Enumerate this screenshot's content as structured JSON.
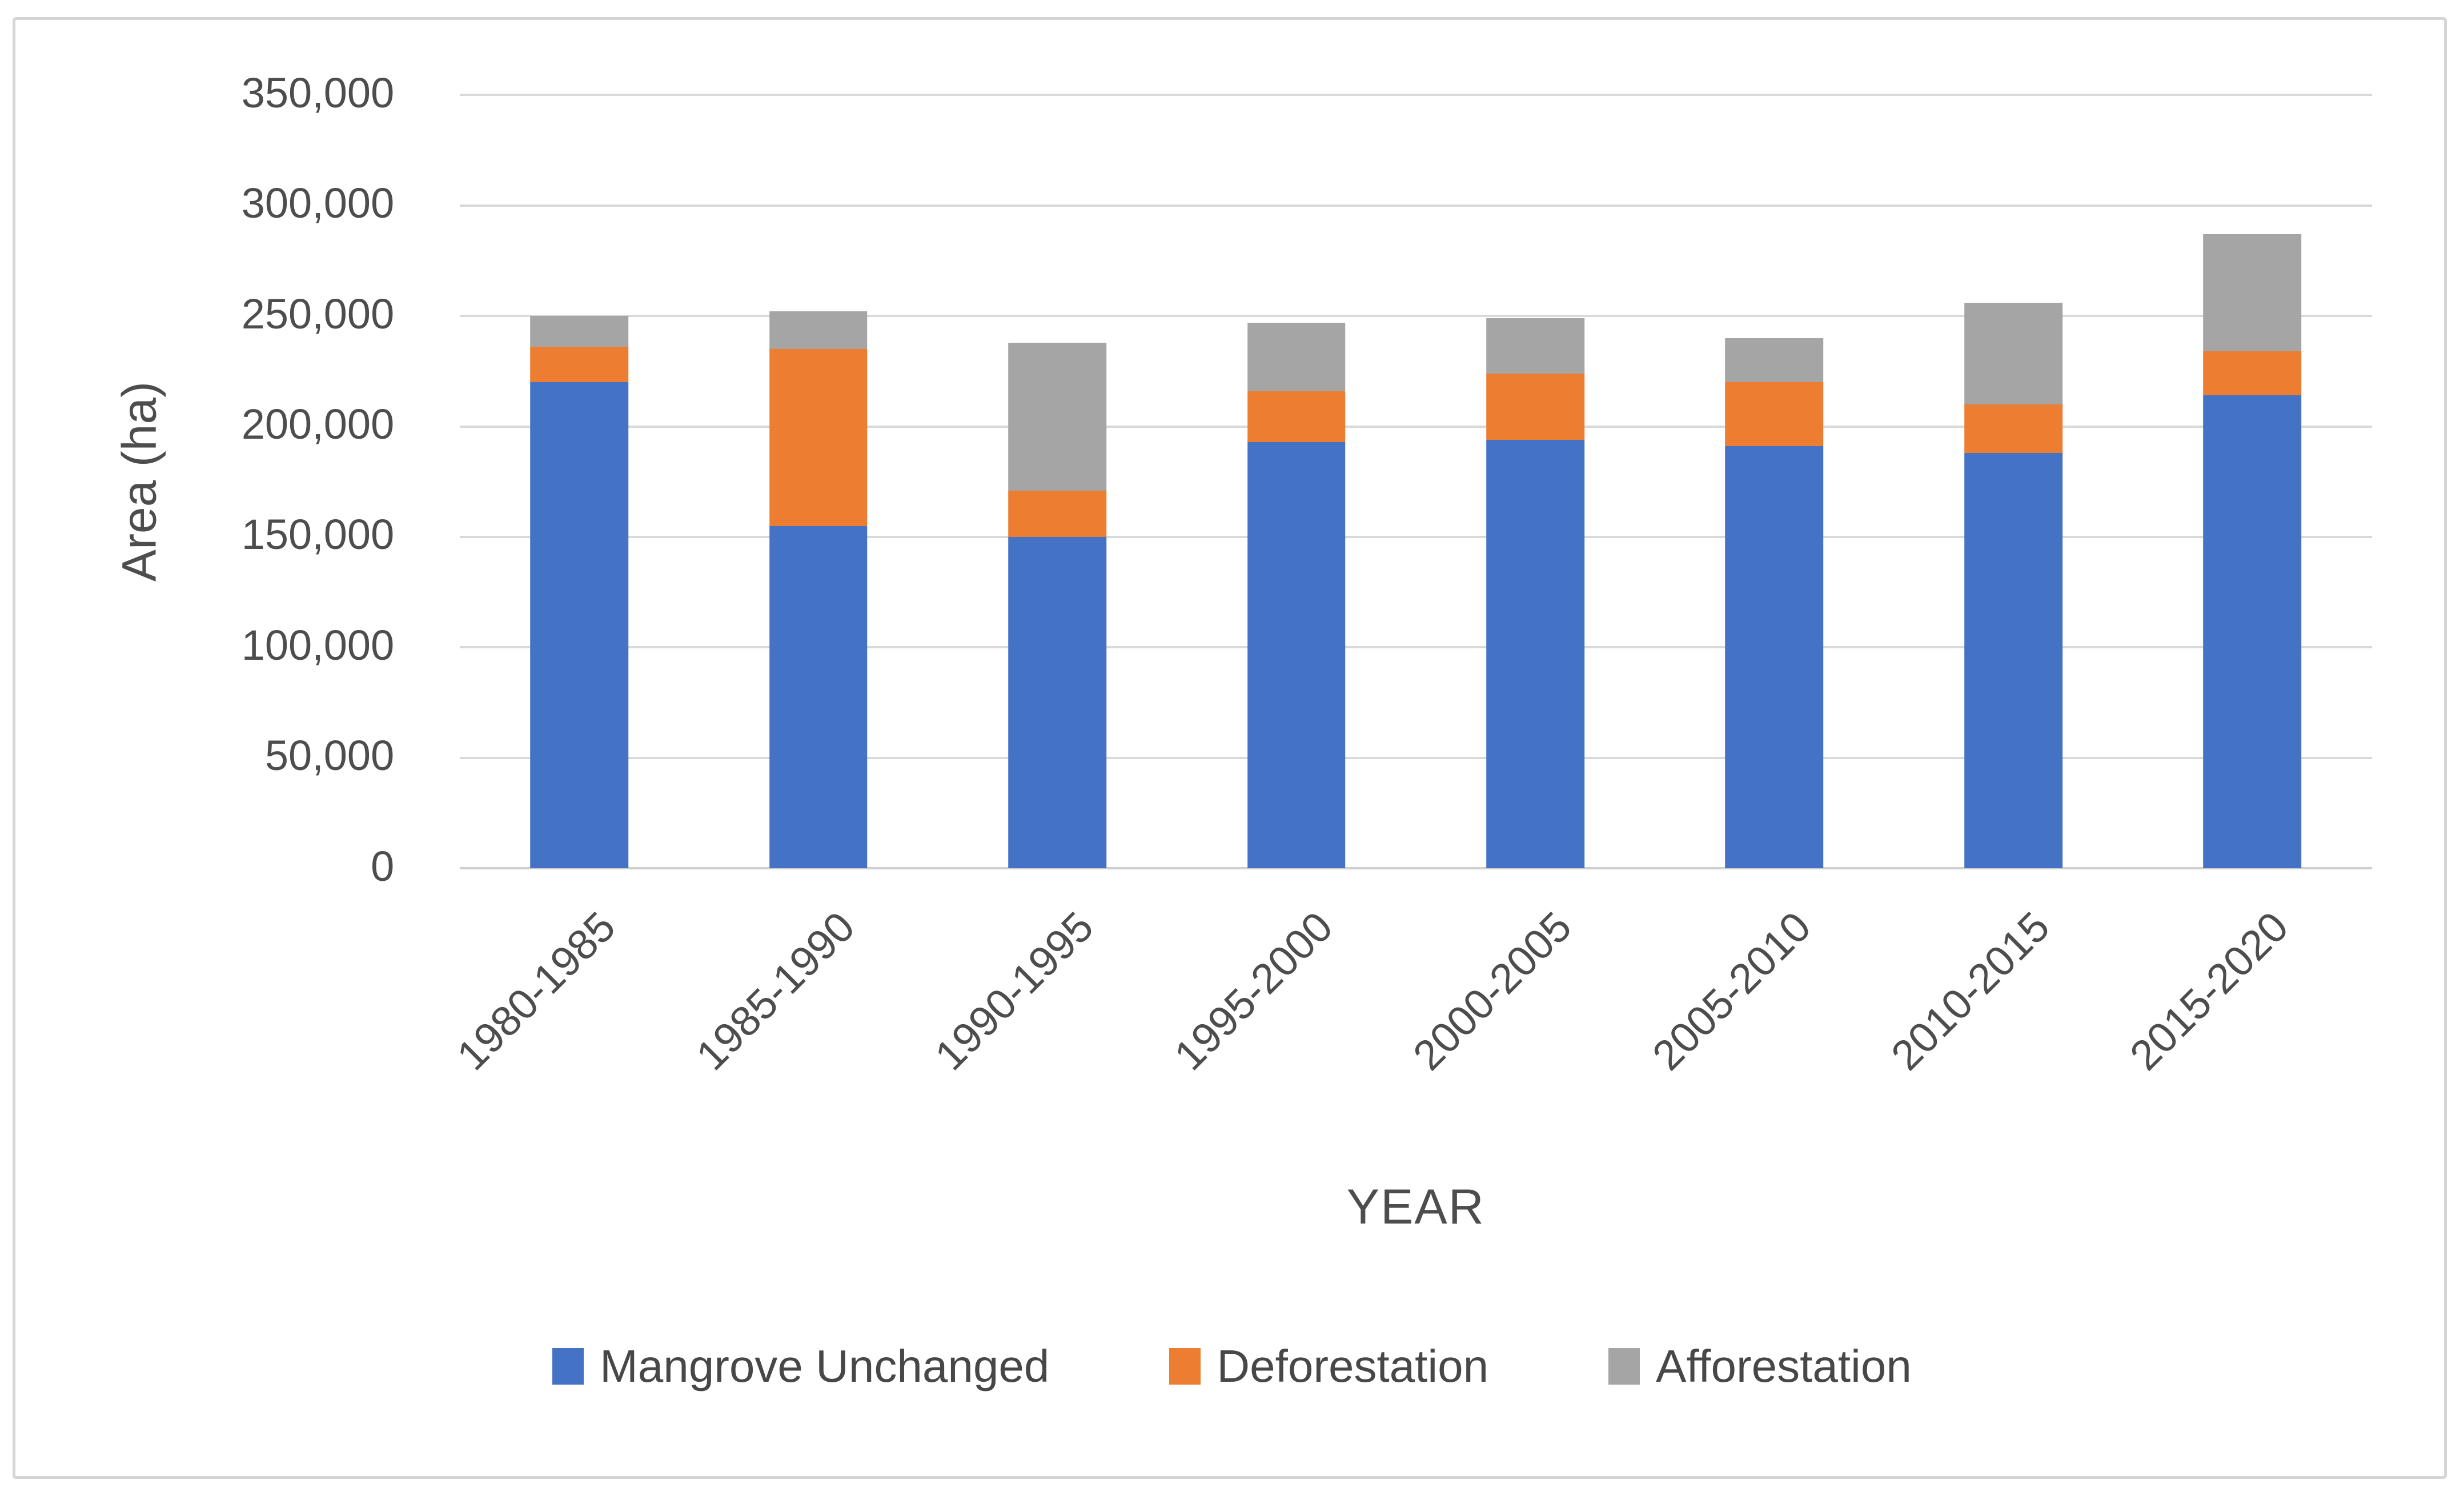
{
  "figure": {
    "background_color": "#ffffff",
    "frame_color": "#d5d5d5",
    "grid_color": "#d9d9d9",
    "text_color": "#4d4d4d"
  },
  "chart_data": {
    "type": "bar",
    "stacked": true,
    "title": "",
    "xlabel": "YEAR",
    "ylabel": "Area (ha)",
    "categories": [
      "1980-1985",
      "1985-1990",
      "1990-1995",
      "1995-2000",
      "2000-2005",
      "2005-2010",
      "2010-2015",
      "2015-2020"
    ],
    "series": [
      {
        "name": "Mangrove Unchanged",
        "color": "#4472c4",
        "values": [
          220000,
          155000,
          150000,
          193000,
          194000,
          191000,
          188000,
          214000
        ]
      },
      {
        "name": "Deforestation",
        "color": "#ed7d31",
        "values": [
          16000,
          80000,
          21000,
          23000,
          30000,
          29000,
          22000,
          20000
        ]
      },
      {
        "name": "Afforestation",
        "color": "#a5a5a5",
        "values": [
          14000,
          17000,
          67000,
          31000,
          25000,
          20000,
          46000,
          53000
        ]
      }
    ],
    "ylim": [
      0,
      350000
    ],
    "ytick_step": 50000,
    "ytick_labels": [
      "0",
      "50,000",
      "100,000",
      "150,000",
      "200,000",
      "250,000",
      "300,000",
      "350,000"
    ],
    "grid": true,
    "legend_position": "bottom",
    "x_tick_rotation_deg": 45,
    "bar_width_fraction_of_slot": 0.41
  }
}
